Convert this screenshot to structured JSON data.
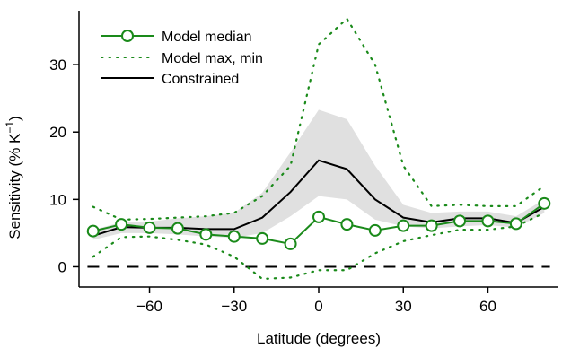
{
  "chart_data": {
    "type": "line",
    "title": "",
    "xlabel": "Latitude (degrees)",
    "ylabel": "Sensitivity (% K",
    "ylabel_sup": "−1",
    "ylabel_close": ")",
    "xlim": [
      -85,
      85
    ],
    "ylim": [
      -3,
      38
    ],
    "xticks": [
      -60,
      -30,
      0,
      30,
      60
    ],
    "xtick_labels": [
      "−60",
      "−30",
      "0",
      "30",
      "60"
    ],
    "yticks": [
      0,
      10,
      20,
      30
    ],
    "ytick_labels": [
      "0",
      "10",
      "20",
      "30"
    ],
    "grid": false,
    "legend_position": "top-left",
    "colors": {
      "median": "#1a8a1a",
      "maxmin": "#1a8a1a",
      "constrained": "#000000",
      "band": "#e0e0e0",
      "zero": "#000000"
    },
    "x": [
      -80,
      -70,
      -60,
      -50,
      -40,
      -30,
      -20,
      -10,
      0,
      10,
      20,
      30,
      40,
      50,
      60,
      70,
      80
    ],
    "series": [
      {
        "name": "Model median",
        "style": "line-circle",
        "values": [
          5.3,
          6.3,
          5.8,
          5.7,
          4.8,
          4.5,
          4.2,
          3.4,
          7.4,
          6.3,
          5.4,
          6.1,
          6.1,
          6.8,
          6.8,
          6.4,
          9.4
        ]
      },
      {
        "name": "Model max, min",
        "style": "dotted",
        "upper": [
          8.9,
          7.0,
          7.1,
          7.3,
          7.5,
          8.0,
          10.5,
          15.0,
          33.0,
          36.8,
          30.0,
          15.0,
          9.0,
          9.2,
          9.0,
          9.0,
          12.0
        ],
        "lower": [
          1.5,
          4.4,
          4.5,
          4.0,
          3.3,
          1.5,
          -1.8,
          -1.6,
          -0.5,
          -0.5,
          2.0,
          3.8,
          4.7,
          5.5,
          5.5,
          6.0,
          8.0
        ]
      },
      {
        "name": "Constrained",
        "style": "solid",
        "values": [
          4.6,
          5.9,
          5.8,
          5.8,
          5.6,
          5.6,
          7.3,
          11.1,
          15.8,
          14.5,
          10.0,
          7.3,
          6.6,
          7.2,
          7.2,
          6.5,
          8.9
        ],
        "band_upper": [
          5.5,
          6.6,
          6.7,
          7.2,
          7.5,
          8.0,
          11.0,
          17.0,
          23.3,
          21.9,
          15.0,
          9.2,
          8.0,
          8.2,
          8.2,
          7.5,
          10.0
        ],
        "band_lower": [
          4.0,
          5.0,
          5.0,
          4.8,
          4.5,
          4.3,
          5.0,
          7.5,
          10.5,
          10.0,
          7.0,
          6.0,
          5.7,
          6.0,
          6.2,
          5.8,
          8.0
        ]
      }
    ],
    "reference_line": {
      "y": 0,
      "style": "dashed"
    }
  }
}
